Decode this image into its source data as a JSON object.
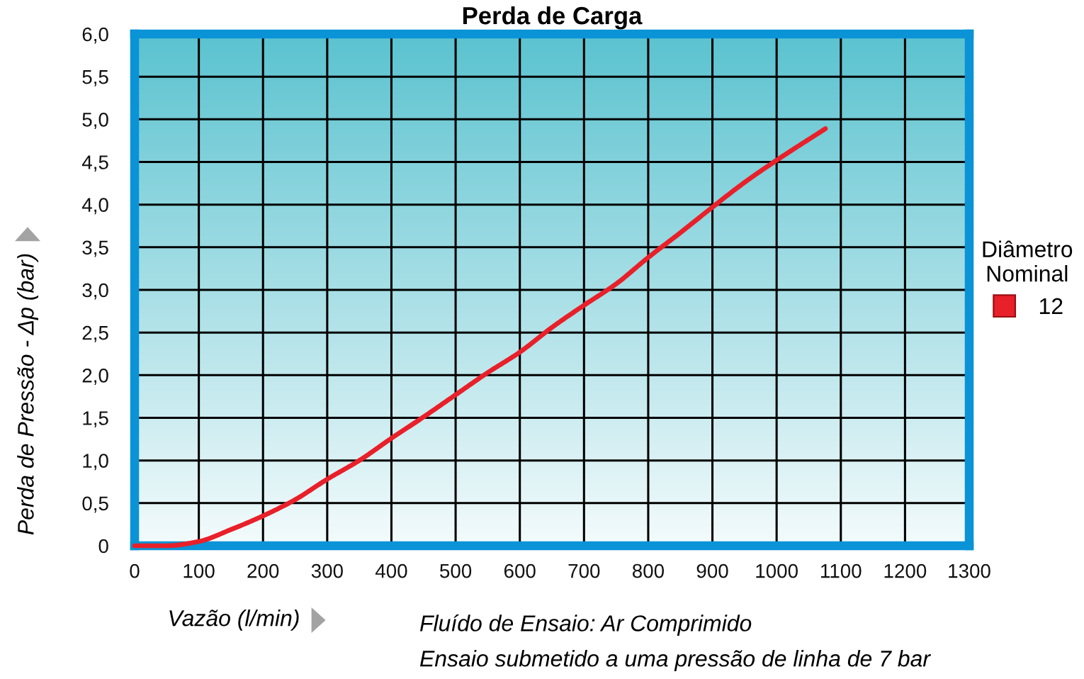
{
  "chart_data": {
    "type": "line",
    "title": "Perda de Carga",
    "xlabel": "Vazão (l/min)",
    "ylabel": "Perda de Pressão - Δp (bar)",
    "legend_title": "Diâmetro\nNominal",
    "annotations": [
      "Fluído de Ensaio: Ar Comprimido",
      "Ensaio submetido a uma pressão de linha de 7 bar"
    ],
    "x": [
      0,
      25,
      50,
      100,
      150,
      200,
      250,
      300,
      350,
      400,
      450,
      500,
      550,
      600,
      650,
      700,
      750,
      800,
      850,
      900,
      950,
      1000,
      1076
    ],
    "series": [
      {
        "name": "12",
        "color": "#e8202a",
        "values": [
          0,
          0,
          0,
          0.05,
          0.19,
          0.35,
          0.54,
          0.78,
          1.0,
          1.26,
          1.51,
          1.77,
          2.03,
          2.27,
          2.56,
          2.82,
          3.07,
          3.38,
          3.67,
          3.97,
          4.26,
          4.52,
          4.89
        ]
      }
    ],
    "xlim": [
      0,
      1300
    ],
    "xticks": [
      0,
      100,
      200,
      300,
      400,
      500,
      600,
      700,
      800,
      900,
      1000,
      1100,
      1200,
      1300
    ],
    "ylim": [
      0,
      6
    ],
    "yticks": [
      0,
      {
        "value": 0.5,
        "label": "0,5"
      },
      {
        "value": 1,
        "label": "1,0"
      },
      {
        "value": 1.5,
        "label": "1,5"
      },
      {
        "value": 2,
        "label": "2,0"
      },
      {
        "value": 2.5,
        "label": "2,5"
      },
      {
        "value": 3,
        "label": "3,0"
      },
      {
        "value": 3.5,
        "label": "3,5"
      },
      {
        "value": 4,
        "label": "4,0"
      },
      {
        "value": 4.5,
        "label": "4,5"
      },
      {
        "value": 5,
        "label": "5,0"
      },
      {
        "value": 5.5,
        "label": "5,5"
      },
      {
        "value": 6,
        "label": "6,0"
      }
    ],
    "grid": true,
    "legend": "right",
    "line_style": "solid"
  }
}
